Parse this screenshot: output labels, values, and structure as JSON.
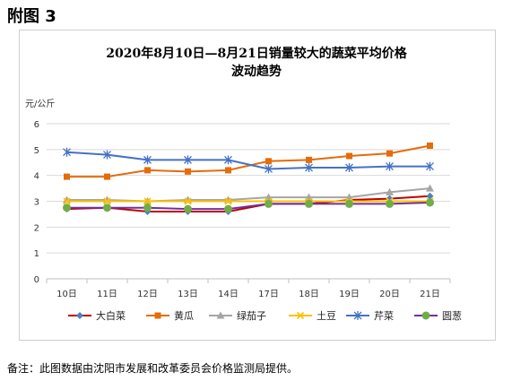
{
  "figure_label": "附图 3",
  "note": "备注：此图数据由沈阳市发展和改革委员会价格监测局提供。",
  "chart_data": {
    "type": "line",
    "title_line1": "2020年8月10日—8月21日销量较大的蔬菜平均价格",
    "title_line2": "波动趋势",
    "ylabel": "元/公斤",
    "xlabel": "",
    "ylim": [
      0,
      6
    ],
    "yticks": [
      0,
      1,
      2,
      3,
      4,
      5,
      6
    ],
    "grid": true,
    "legend_position": "bottom",
    "categories": [
      "10日",
      "11日",
      "12日",
      "13日",
      "14日",
      "17日",
      "18日",
      "19日",
      "20日",
      "21日"
    ],
    "series": [
      {
        "name": "大白菜",
        "color": "#c00000",
        "marker": "diamond",
        "markerColor": "#4f81bd",
        "values": [
          2.7,
          2.75,
          2.6,
          2.6,
          2.6,
          2.9,
          2.9,
          3.05,
          3.1,
          3.2
        ]
      },
      {
        "name": "黄瓜",
        "color": "#e46c0a",
        "marker": "square",
        "markerColor": "#e46c0a",
        "values": [
          3.95,
          3.95,
          4.2,
          4.15,
          4.2,
          4.55,
          4.6,
          4.75,
          4.85,
          5.15
        ]
      },
      {
        "name": "绿茄子",
        "color": "#a5a5a5",
        "marker": "triangle",
        "markerColor": "#a5a5a5",
        "values": [
          3.05,
          3.05,
          3.0,
          3.05,
          3.05,
          3.15,
          3.15,
          3.15,
          3.35,
          3.5
        ]
      },
      {
        "name": "土豆",
        "color": "#ffc000",
        "marker": "x",
        "markerColor": "#ffc000",
        "values": [
          3.0,
          3.0,
          3.0,
          3.0,
          3.0,
          3.0,
          3.0,
          3.0,
          3.0,
          3.0
        ]
      },
      {
        "name": "芹菜",
        "color": "#4472c4",
        "marker": "star",
        "markerColor": "#4472c4",
        "values": [
          4.9,
          4.8,
          4.6,
          4.6,
          4.6,
          4.25,
          4.3,
          4.3,
          4.35,
          4.35
        ]
      },
      {
        "name": "圆葱",
        "color": "#7030a0",
        "marker": "circle",
        "markerColor": "#70ad47",
        "values": [
          2.75,
          2.75,
          2.75,
          2.7,
          2.7,
          2.9,
          2.9,
          2.9,
          2.9,
          2.95
        ]
      }
    ]
  }
}
